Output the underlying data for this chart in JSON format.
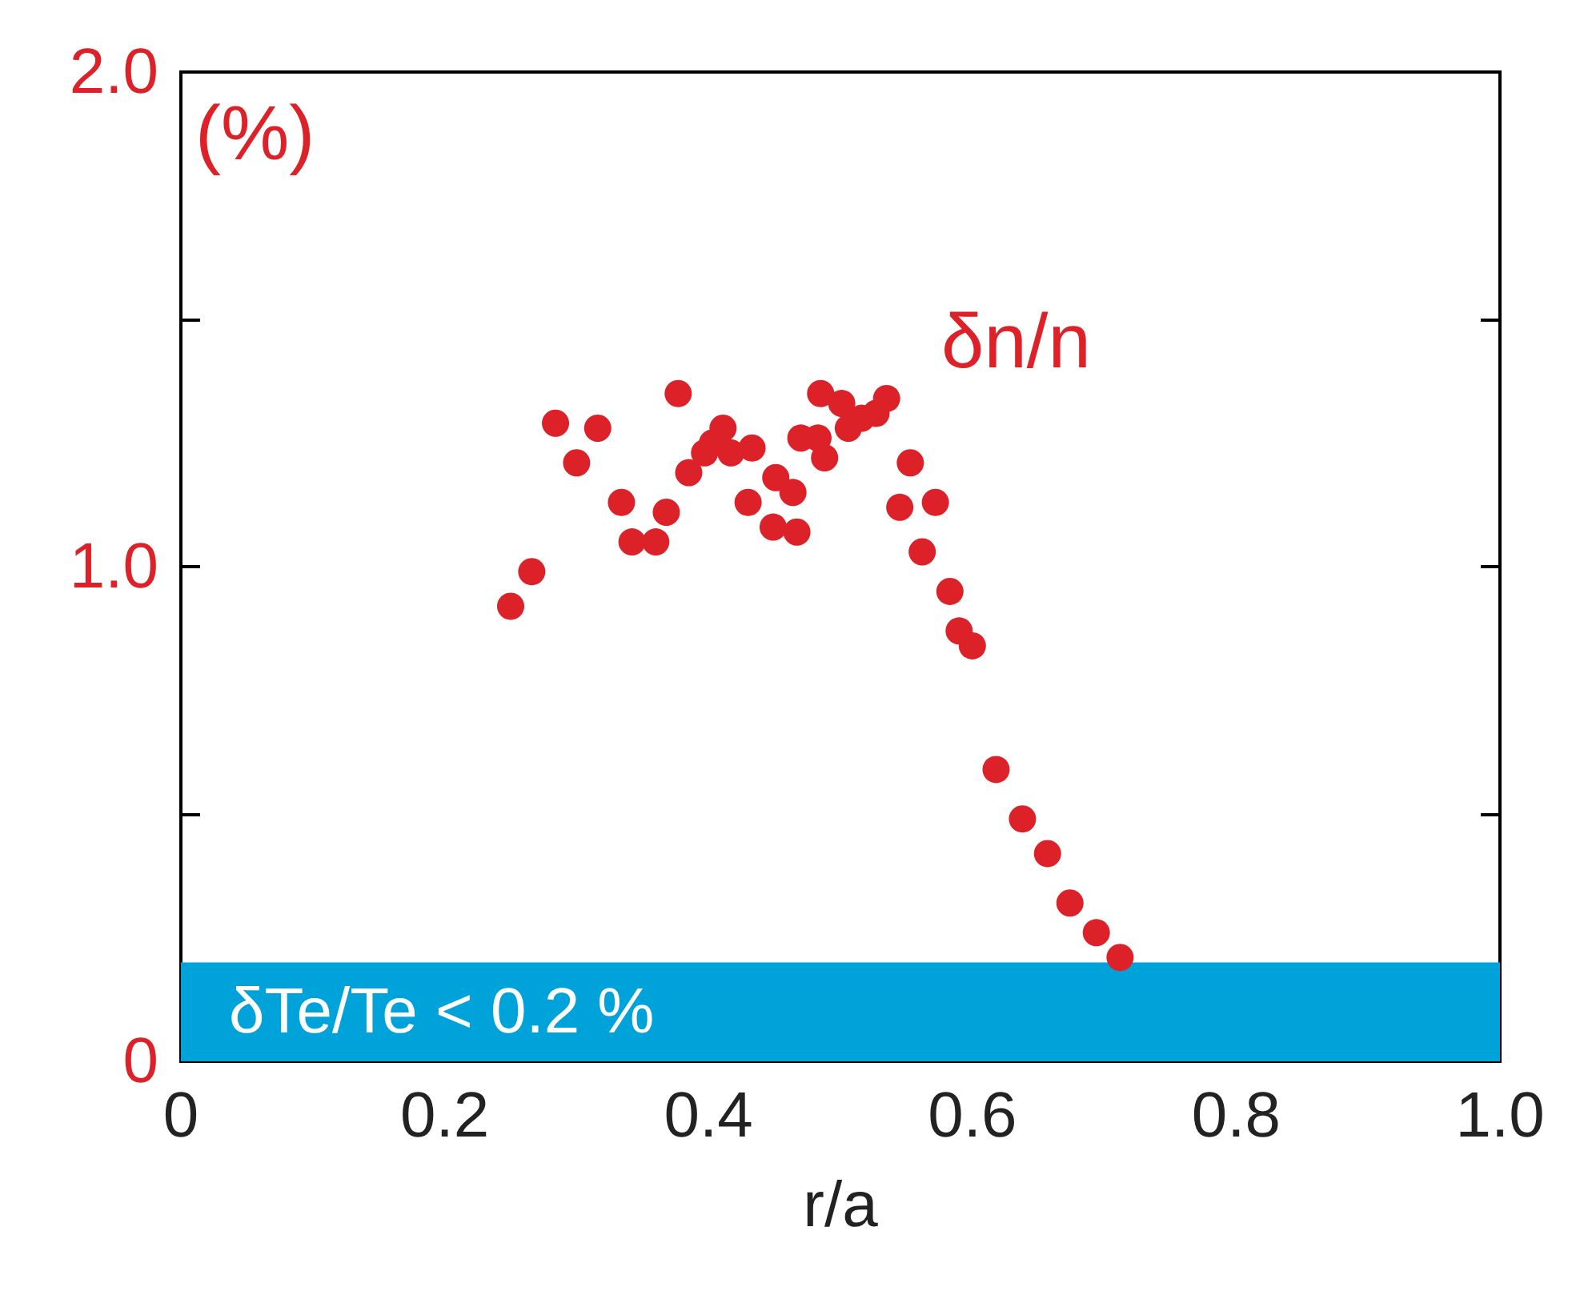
{
  "chart_data": {
    "type": "scatter",
    "xlabel": "r/a",
    "ylabel": "(%)",
    "xlim": [
      0,
      1
    ],
    "xticks": [
      {
        "value": 0,
        "label": "0"
      },
      0.2,
      0.4,
      0.6,
      0.8,
      {
        "value": 1,
        "label": "1.0"
      }
    ],
    "ylim": [
      0,
      2
    ],
    "yticks": [
      {
        "value": 0,
        "label": "0"
      },
      {
        "value": 0.5,
        "label": null
      },
      {
        "value": 1,
        "label": "1.0"
      },
      {
        "value": 1.5,
        "label": null
      },
      {
        "value": 2,
        "label": "2.0"
      }
    ],
    "grid": false,
    "legend": false,
    "marker": "circle",
    "bands": [
      {
        "axis": "y",
        "from": 0,
        "to": 0.2,
        "label": "δTe/Te < 0.2 %",
        "color": "#00a3d9"
      }
    ],
    "series": [
      {
        "name": "δn/n",
        "color": "#dc2128",
        "x": [
          0.25,
          0.266,
          0.284,
          0.3,
          0.316,
          0.334,
          0.342,
          0.36,
          0.368,
          0.377,
          0.385,
          0.397,
          0.403,
          0.411,
          0.417,
          0.433,
          0.43,
          0.451,
          0.464,
          0.449,
          0.467,
          0.47,
          0.483,
          0.488,
          0.485,
          0.501,
          0.506,
          0.516,
          0.527,
          0.535,
          0.553,
          0.545,
          0.572,
          0.562,
          0.583,
          0.59,
          0.6,
          0.618,
          0.638,
          0.657,
          0.674,
          0.694,
          0.712
        ],
        "values": [
          0.92,
          0.99,
          1.29,
          1.21,
          1.28,
          1.13,
          1.05,
          1.05,
          1.11,
          1.35,
          1.19,
          1.23,
          1.25,
          1.28,
          1.23,
          1.24,
          1.13,
          1.18,
          1.15,
          1.08,
          1.07,
          1.26,
          1.26,
          1.22,
          1.35,
          1.33,
          1.28,
          1.3,
          1.31,
          1.34,
          1.21,
          1.12,
          1.13,
          1.03,
          0.95,
          0.87,
          0.84,
          0.59,
          0.49,
          0.42,
          0.32,
          0.26,
          0.21
        ]
      }
    ]
  }
}
